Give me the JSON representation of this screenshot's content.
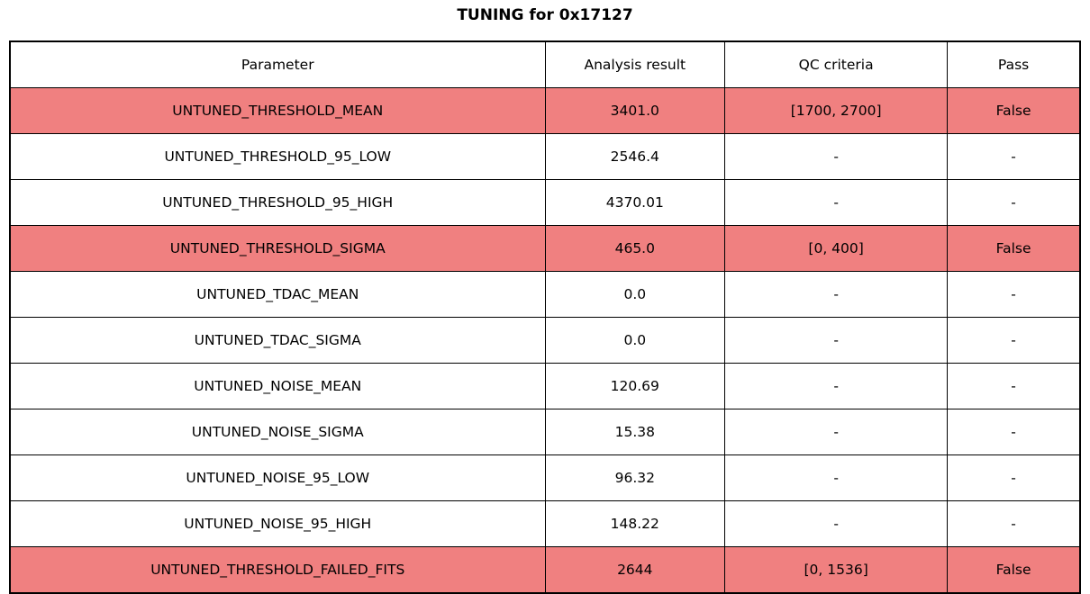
{
  "title": "TUNING for 0x17127",
  "colors": {
    "fail_row_bg": "#f08080",
    "normal_row_bg": "#ffffff",
    "border": "#000000",
    "text": "#000000"
  },
  "chart_data": {
    "type": "table",
    "title": "TUNING for 0x17127",
    "columns": [
      "Parameter",
      "Analysis result",
      "QC criteria",
      "Pass"
    ],
    "rows": [
      {
        "parameter": "UNTUNED_THRESHOLD_MEAN",
        "analysis_result": "3401.0",
        "qc_criteria": "[1700, 2700]",
        "pass": "False",
        "failed": true
      },
      {
        "parameter": "UNTUNED_THRESHOLD_95_LOW",
        "analysis_result": "2546.4",
        "qc_criteria": "-",
        "pass": "-",
        "failed": false
      },
      {
        "parameter": "UNTUNED_THRESHOLD_95_HIGH",
        "analysis_result": "4370.01",
        "qc_criteria": "-",
        "pass": "-",
        "failed": false
      },
      {
        "parameter": "UNTUNED_THRESHOLD_SIGMA",
        "analysis_result": "465.0",
        "qc_criteria": "[0, 400]",
        "pass": "False",
        "failed": true
      },
      {
        "parameter": "UNTUNED_TDAC_MEAN",
        "analysis_result": "0.0",
        "qc_criteria": "-",
        "pass": "-",
        "failed": false
      },
      {
        "parameter": "UNTUNED_TDAC_SIGMA",
        "analysis_result": "0.0",
        "qc_criteria": "-",
        "pass": "-",
        "failed": false
      },
      {
        "parameter": "UNTUNED_NOISE_MEAN",
        "analysis_result": "120.69",
        "qc_criteria": "-",
        "pass": "-",
        "failed": false
      },
      {
        "parameter": "UNTUNED_NOISE_SIGMA",
        "analysis_result": "15.38",
        "qc_criteria": "-",
        "pass": "-",
        "failed": false
      },
      {
        "parameter": "UNTUNED_NOISE_95_LOW",
        "analysis_result": "96.32",
        "qc_criteria": "-",
        "pass": "-",
        "failed": false
      },
      {
        "parameter": "UNTUNED_NOISE_95_HIGH",
        "analysis_result": "148.22",
        "qc_criteria": "-",
        "pass": "-",
        "failed": false
      },
      {
        "parameter": "UNTUNED_THRESHOLD_FAILED_FITS",
        "analysis_result": "2644",
        "qc_criteria": "[0, 1536]",
        "pass": "False",
        "failed": true
      }
    ]
  }
}
